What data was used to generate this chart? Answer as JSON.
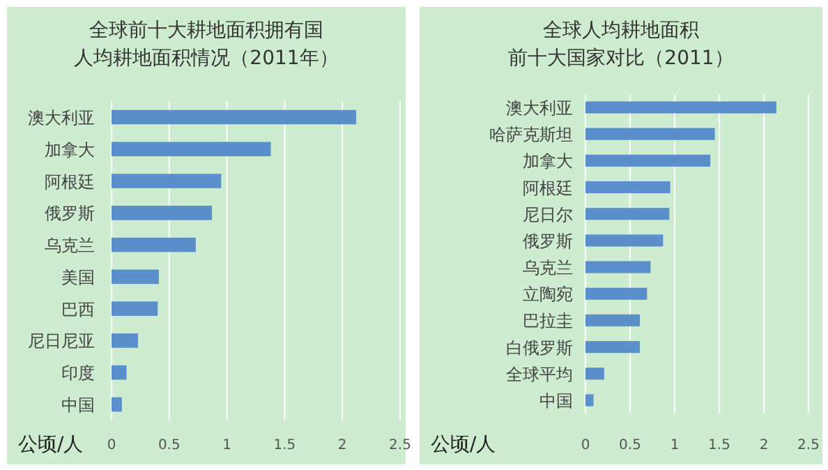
{
  "chart_data": [
    {
      "type": "bar",
      "orientation": "horizontal",
      "title": "全球前十大耕地面积拥有国",
      "subtitle": "人均耕地面积情况（2011年）",
      "xlabel": "公顷/人",
      "categories": [
        "澳大利亚",
        "加拿大",
        "阿根廷",
        "俄罗斯",
        "乌克兰",
        "美国",
        "巴西",
        "尼日尼亚",
        "印度",
        "中国"
      ],
      "values": [
        2.12,
        1.38,
        0.95,
        0.87,
        0.73,
        0.41,
        0.4,
        0.23,
        0.13,
        0.09
      ],
      "color": "#5b8fcb",
      "xlim": [
        0,
        2.5
      ],
      "xticks": [
        0,
        0.5,
        1,
        1.5,
        2,
        2.5
      ],
      "grid": "x"
    },
    {
      "type": "bar",
      "orientation": "horizontal",
      "title": "全球人均耕地面积",
      "subtitle": "前十大国家对比（2011）",
      "xlabel": "公顷/人",
      "categories": [
        "澳大利亚",
        "哈萨克斯坦",
        "加拿大",
        "阿根廷",
        "尼日尔",
        "俄罗斯",
        "乌克兰",
        "立陶宛",
        "巴拉圭",
        "白俄罗斯",
        "全球平均",
        "中国"
      ],
      "values": [
        2.14,
        1.45,
        1.4,
        0.95,
        0.94,
        0.87,
        0.73,
        0.69,
        0.61,
        0.61,
        0.21,
        0.09
      ],
      "color": "#5b8fcb",
      "xlim": [
        0,
        2.5
      ],
      "xticks": [
        0,
        0.5,
        1,
        1.5,
        2,
        2.5
      ],
      "grid": "x"
    }
  ]
}
